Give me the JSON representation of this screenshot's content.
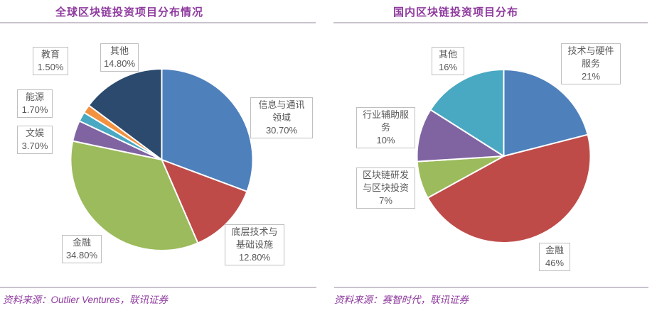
{
  "panels": {
    "left": {
      "title": "全球区块链投资项目分布情况",
      "source_label": "资料来源：Outlier Ventures，联讯证券"
    },
    "right": {
      "title": "国内区块链投资项目分布",
      "source_label": "资料来源：赛智时代，联讯证券"
    }
  },
  "colors": {
    "title_purple": "#8e3a9e",
    "rule_gray": "#cac2ce",
    "label_border": "#bfbfbf",
    "label_text": "#595959"
  },
  "chart_data": [
    {
      "type": "pie",
      "title": "全球区块链投资项目分布情况",
      "source": "资料来源：Outlier Ventures，联讯证券",
      "start_angle_deg": 0,
      "direction": "clockwise",
      "legend": "none",
      "data_labels": "outside-boxed",
      "categories": [
        "信息与通讯领域",
        "底层技术与基础设施",
        "金融",
        "文娱",
        "能源",
        "教育",
        "其他"
      ],
      "values": [
        30.7,
        12.8,
        34.8,
        3.7,
        1.7,
        1.5,
        14.8
      ],
      "slices": [
        {
          "id": "info-comm",
          "name": "信息与通讯领域",
          "value": 30.7,
          "color": "#4e80bc",
          "label_lines": [
            "信息与通讯",
            "领域",
            "30.70%"
          ]
        },
        {
          "id": "infrastructure",
          "name": "底层技术与基础设施",
          "value": 12.8,
          "color": "#bf4b49",
          "label_lines": [
            "底层技术与",
            "基础设施",
            "12.80%"
          ]
        },
        {
          "id": "finance",
          "name": "金融",
          "value": 34.8,
          "color": "#9cbb5c",
          "label_lines": [
            "金融",
            "34.80%"
          ]
        },
        {
          "id": "entertainment",
          "name": "文娱",
          "value": 3.7,
          "color": "#8064a2",
          "label_lines": [
            "文娱",
            "3.70%"
          ]
        },
        {
          "id": "energy",
          "name": "能源",
          "value": 1.7,
          "color": "#49a8c2",
          "label_lines": [
            "能源",
            "1.70%"
          ]
        },
        {
          "id": "education",
          "name": "教育",
          "value": 1.5,
          "color": "#f29140",
          "label_lines": [
            "教育",
            "1.50%"
          ]
        },
        {
          "id": "others",
          "name": "其他",
          "value": 14.8,
          "color": "#2b4a6e",
          "label_lines": [
            "其他",
            "14.80%"
          ]
        }
      ]
    },
    {
      "type": "pie",
      "title": "国内区块链投资项目分布",
      "source": "资料来源：赛智时代，联讯证券",
      "start_angle_deg": 0,
      "direction": "clockwise",
      "legend": "none",
      "data_labels": "outside-boxed",
      "categories": [
        "技术与硬件服务",
        "金融",
        "区块链研发与区块投资",
        "行业辅助服务",
        "其他"
      ],
      "values": [
        21,
        46,
        7,
        10,
        16
      ],
      "slices": [
        {
          "id": "tech-hardware",
          "name": "技术与硬件服务",
          "value": 21,
          "color": "#4e80bc",
          "label_lines": [
            "技术与硬件",
            "服务",
            "21%"
          ]
        },
        {
          "id": "finance",
          "name": "金融",
          "value": 46,
          "color": "#bf4b49",
          "label_lines": [
            "金融",
            "46%"
          ]
        },
        {
          "id": "rd-investment",
          "name": "区块链研发与区块投资",
          "value": 7,
          "color": "#9cbb5c",
          "label_lines": [
            "区块链研发",
            "与区块投资",
            "7%"
          ]
        },
        {
          "id": "industry-support",
          "name": "行业辅助服务",
          "value": 10,
          "color": "#8064a2",
          "label_lines": [
            "行业辅助服",
            "务",
            "10%"
          ]
        },
        {
          "id": "others",
          "name": "其他",
          "value": 16,
          "color": "#49a8c2",
          "label_lines": [
            "其他",
            "16%"
          ]
        }
      ]
    }
  ]
}
